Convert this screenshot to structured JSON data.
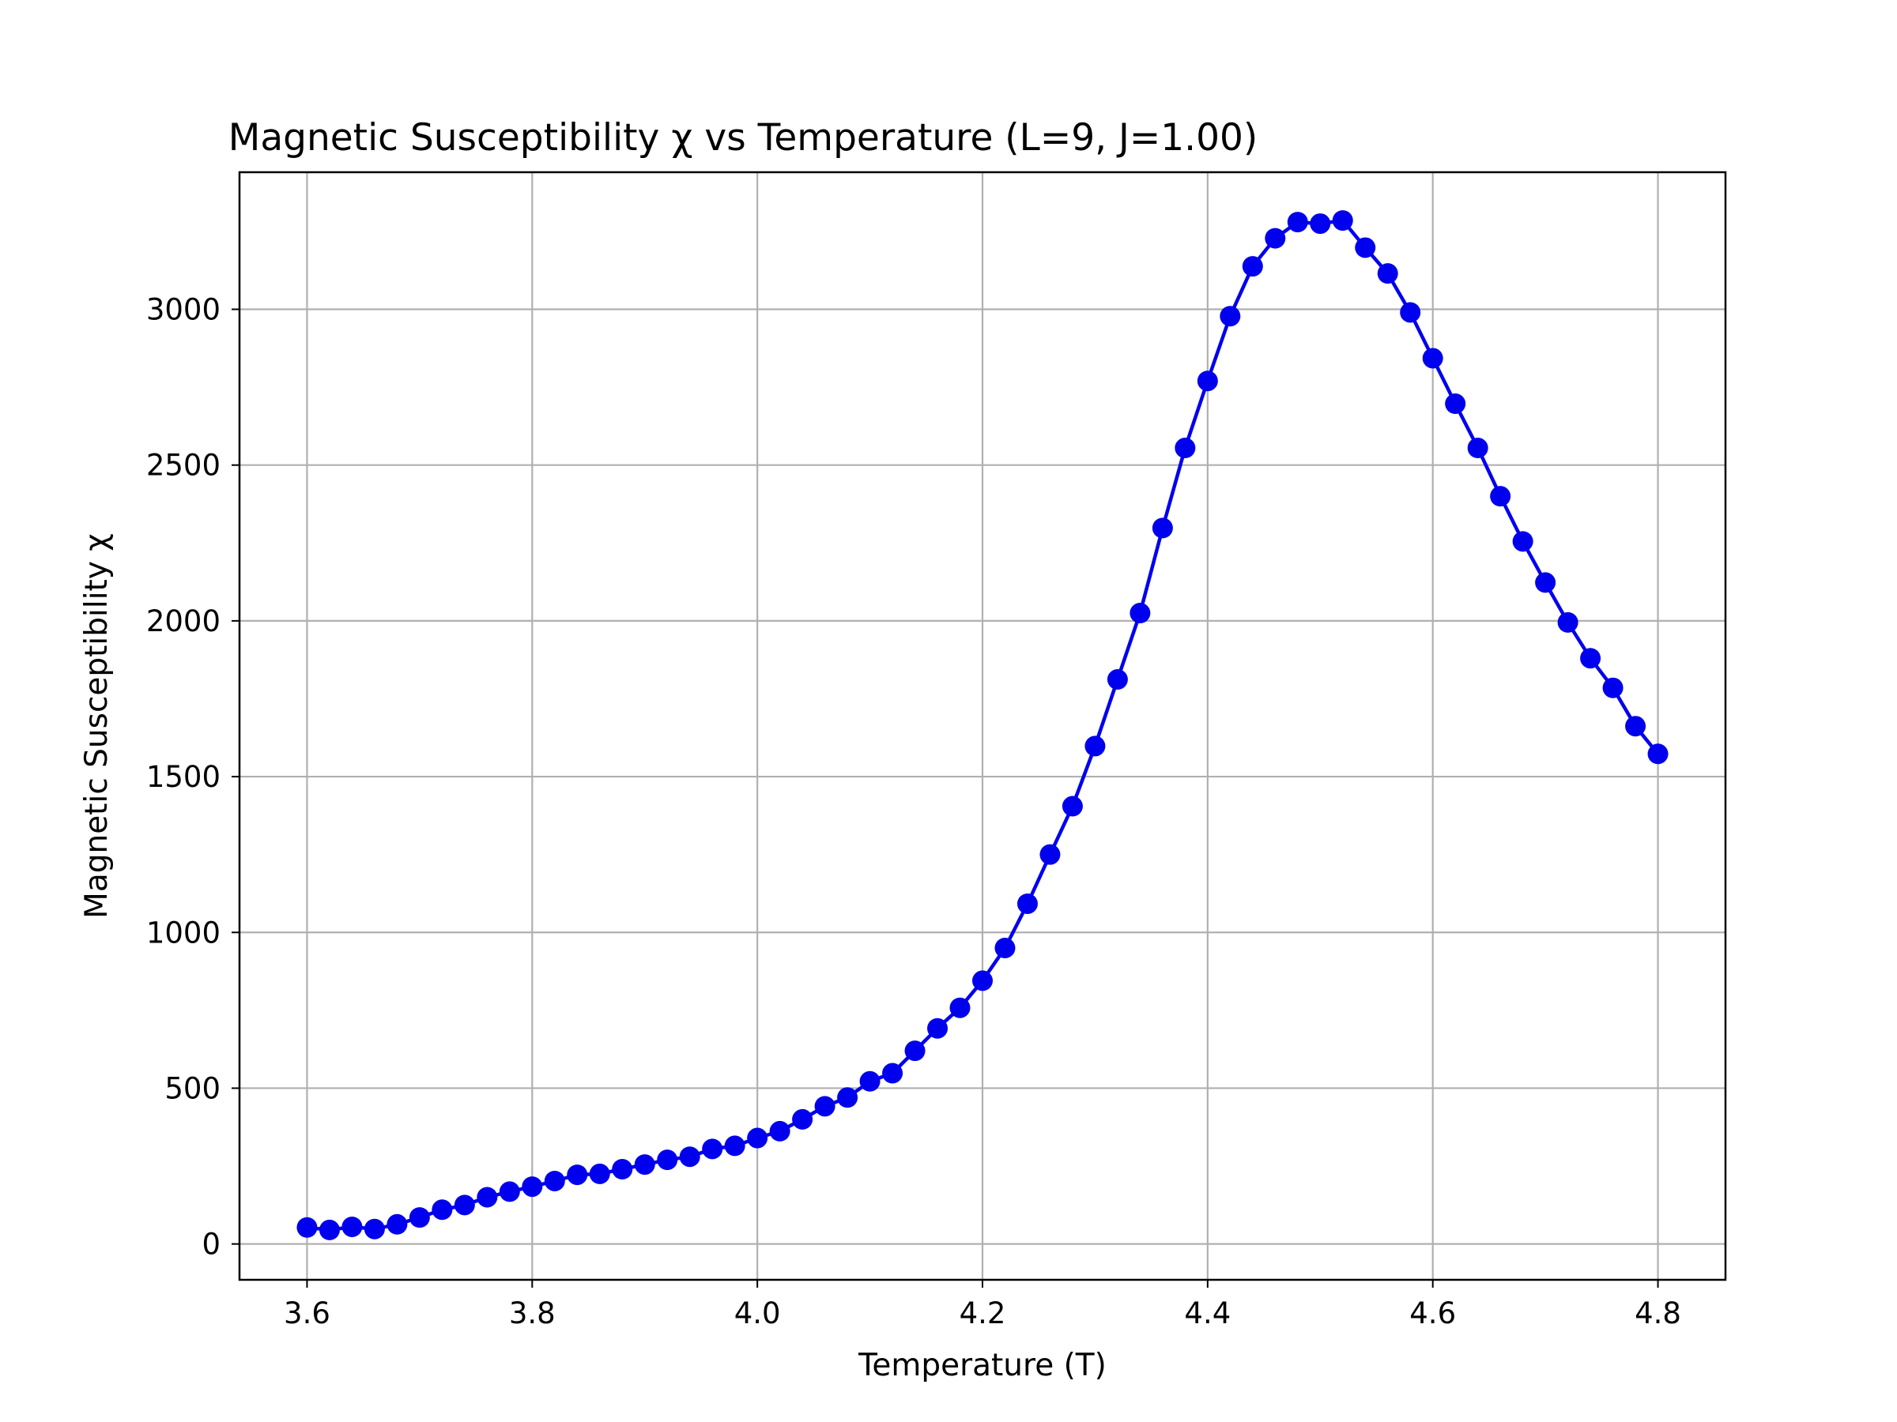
{
  "chart_data": {
    "type": "line",
    "title": "Magnetic Susceptibility χ vs Temperature (L=9, J=1.00)",
    "xlabel": "Temperature (T)",
    "ylabel": "Magnetic Susceptibility χ",
    "xlim": [
      3.54,
      4.86
    ],
    "ylim": [
      -115,
      3440
    ],
    "xticks": [
      3.6,
      3.8,
      4.0,
      4.2,
      4.4,
      4.6,
      4.8
    ],
    "xtick_labels": [
      "3.6",
      "3.8",
      "4.0",
      "4.2",
      "4.4",
      "4.6",
      "4.8"
    ],
    "yticks": [
      0,
      500,
      1000,
      1500,
      2000,
      2500,
      3000
    ],
    "ytick_labels": [
      "0",
      "500",
      "1000",
      "1500",
      "2000",
      "2500",
      "3000"
    ],
    "grid": true,
    "colors": {
      "series": "#0000ee"
    },
    "series": [
      {
        "x": [
          3.6,
          3.62,
          3.64,
          3.66,
          3.68,
          3.7,
          3.72,
          3.74,
          3.76,
          3.78,
          3.8,
          3.82,
          3.84,
          3.86,
          3.88,
          3.9,
          3.92,
          3.94,
          3.96,
          3.98,
          4.0,
          4.02,
          4.04,
          4.06,
          4.08,
          4.1,
          4.12,
          4.14,
          4.16,
          4.18,
          4.2,
          4.22,
          4.24,
          4.26,
          4.28,
          4.3,
          4.32,
          4.34,
          4.36,
          4.38,
          4.4,
          4.42,
          4.44,
          4.46,
          4.48,
          4.5,
          4.52,
          4.54,
          4.56,
          4.58,
          4.6,
          4.62,
          4.64,
          4.66,
          4.68,
          4.7,
          4.72,
          4.74,
          4.76,
          4.78,
          4.8
        ],
        "y": [
          53,
          45,
          55,
          48,
          63,
          85,
          110,
          125,
          150,
          168,
          184,
          202,
          222,
          225,
          240,
          255,
          270,
          280,
          305,
          315,
          340,
          362,
          400,
          442,
          470,
          522,
          548,
          620,
          692,
          758,
          845,
          950,
          1092,
          1250,
          1405,
          1598,
          1812,
          2025,
          2298,
          2555,
          2770,
          2978,
          3138,
          3228,
          3280,
          3275,
          3285,
          3198,
          3115,
          2990,
          2843,
          2697,
          2555,
          2400,
          2255,
          2123,
          1995,
          1880,
          1785,
          1662,
          1573
        ]
      }
    ]
  }
}
